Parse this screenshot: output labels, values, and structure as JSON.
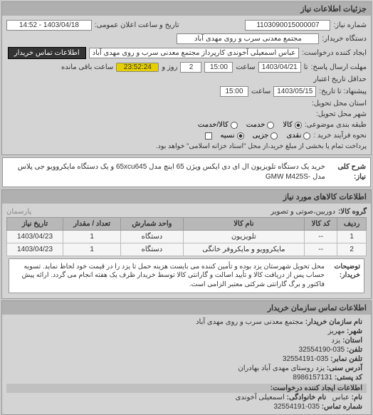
{
  "panel1": {
    "title": "جزئیات اطلاعات نیاز",
    "reqnum_label": "شماره نیاز:",
    "reqnum": "1103090015000007",
    "pubdate_label": "تاریخ و ساعت اعلان عمومی:",
    "pubdate": "1403/04/18 - 14:52",
    "buyer_label": "دستگاه خریدار:",
    "buyer": "مجتمع معدنی سرب و روی مهدی آباد",
    "creator_label": "ایجاد کننده درخواست:",
    "creator": "عباس اسمعیلی آخوندی کارپرداز مجتمع معدنی سرب و روی مهدی آباد",
    "contact_btn": "اطلاعات تماس خریدار",
    "deadline_send_label": "مهلت ارسال پاسخ:",
    "deadline_to": "تا",
    "dl_date": "1403/04/21",
    "dl_time_label": "ساعت",
    "dl_time": "15:00",
    "days_label": "روز و",
    "days": "2",
    "remain_time": "23:52:24",
    "remain_label": "ساعت باقی مانده",
    "validity_label": "حداقل تاریخ اعتبار",
    "validity_label2": "پیشنهاد: تا تاریخ:",
    "valid_date": "1403/05/15",
    "valid_time_label": "ساعت",
    "valid_time": "15:00",
    "province_label": "استان محل تحویل:",
    "city_label": "شهر محل تحویل:",
    "classify_label": "طبقه بندی موضوعی:",
    "opt_goods": "کالا",
    "opt_service": "خدمت",
    "opt_goods_service": "کالا/خدمت",
    "payment_label": "نحوه فرآیند خرید  :",
    "opt_cash": "نقدی",
    "opt_part": "جزیی",
    "opt_post": "نسیه",
    "postpay_note": "پرداخت تمام یا بخشی از مبلغ خرید،از محل \"اسناد خزانه اسلامی\" خواهد بود.",
    "checkbox_label": ""
  },
  "desc": {
    "title_label": "شرح کلی نیاز:",
    "text": "خرید یک دستگاه تلویزیون ال ای دی ایکس ویژن 65 اینچ مدل 65xcu645 و یک دستگاه مایکروویو جی پلاس مدل -GMW M425S"
  },
  "panel2": {
    "title": "اطلاعات کالاهای مورد نیاز",
    "group_label": "گروه کالا:",
    "group": "دوربین،صوتی و تصویر",
    "cols": {
      "row": "ردیف",
      "code": "کد کالا",
      "name": "نام کالا",
      "unit": "واحد شمارش",
      "qty": "تعداد / مقدار",
      "date": "تاریخ نیاز"
    },
    "rows": [
      {
        "row": "1",
        "code": "--",
        "name": "تلویزیون",
        "unit": "دستگاه",
        "qty": "1",
        "date": "1403/04/23"
      },
      {
        "row": "2",
        "code": "--",
        "name": "مایکروویو و مایکروفر خانگی",
        "unit": "دستگاه",
        "qty": "1",
        "date": "1403/04/23"
      }
    ],
    "note_label": "توضیحات خریدار:",
    "note": "محل تحویل شهرستان یزد بوده و تأمین کننده می بایست هزینه حمل تا یزد را در قیمت خود لحاظ نماید. تسویه حساب پس از دریافت کالا و تأیید اصالت و گارانتی کالا توسط خریدار ظرف یک هفته انجام می گردد. ارائه پیش فاکتور و برگ گارانتی شرکتی معتبر الزامی است."
  },
  "panel3": {
    "title": "اطلاعات تماس سازمان خریدار",
    "org_label": "نام سازمان خریدار:",
    "org": "مجتمع معدنی سرب و روی مهدی آباد",
    "city_label": "شهر:",
    "city": "مهریز",
    "province_label": "استان:",
    "province": "یزد",
    "phone_label": "تلفن:",
    "phone": "035-32554190",
    "fax_label": "تلفن نمابر:",
    "fax": "035-32554191",
    "addr_label": "آدرس سنی:",
    "addr": "یزد روستای مهدی آباد بهادران",
    "post_label": "کد پستی:",
    "post": "8986157131",
    "subtitle": "اطلاعات ایجاد کننده درخواست:",
    "name_label": "نام:",
    "name": "عباس",
    "family_label": "نام خانوادگی:",
    "family": "اسمعیلی آخوندی",
    "contact_label": "شماره تماس:",
    "contact": "035-32554191"
  }
}
